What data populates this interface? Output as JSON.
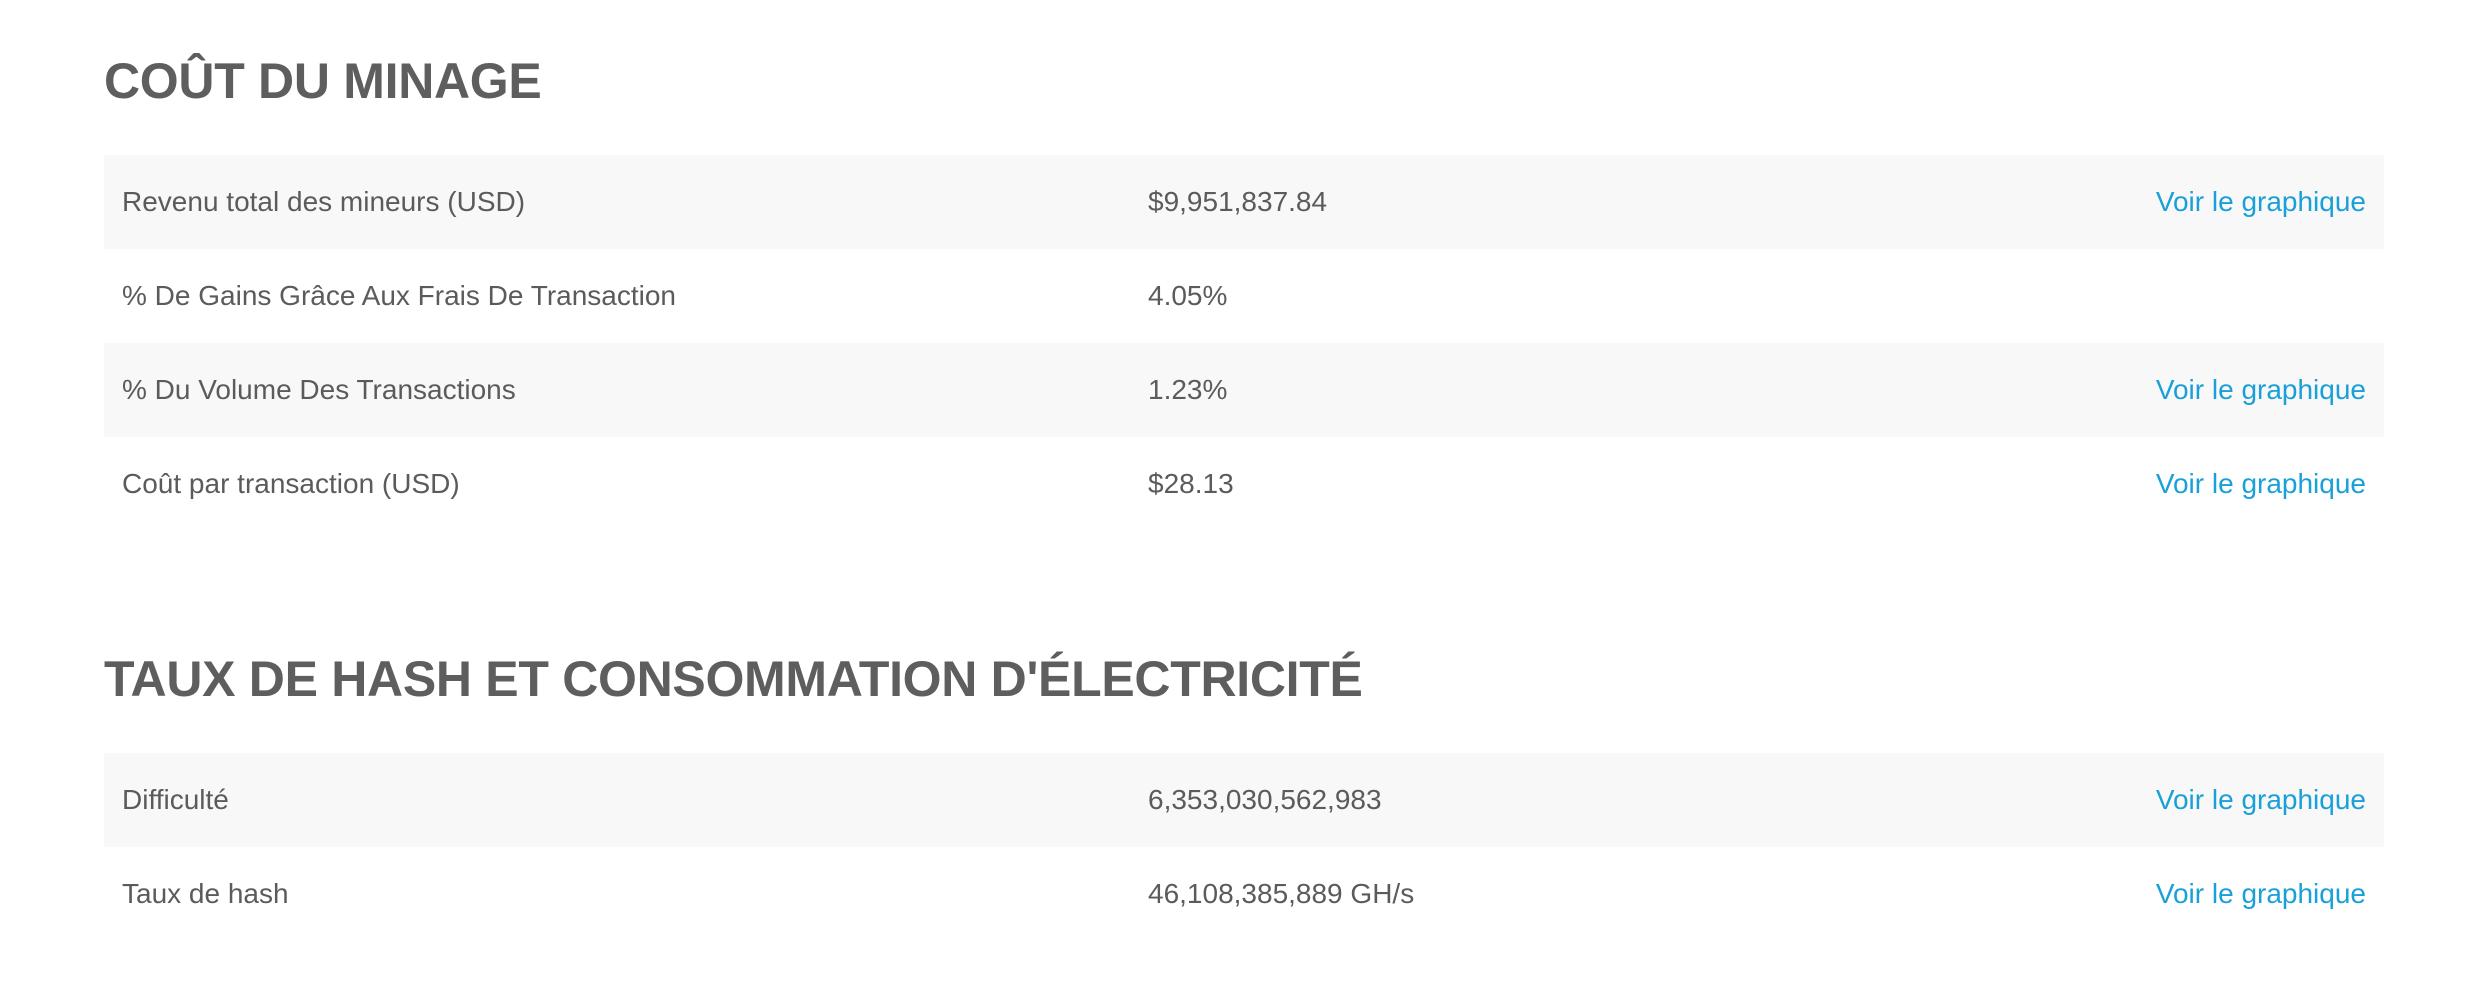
{
  "sections": [
    {
      "title": "COÛT DU MINAGE",
      "rows": [
        {
          "label": "Revenu total des mineurs (USD)",
          "value": "$9,951,837.84",
          "link": "Voir le graphique"
        },
        {
          "label": "% De Gains Grâce Aux Frais De Transaction",
          "value": "4.05%",
          "link": ""
        },
        {
          "label": "% Du Volume Des Transactions",
          "value": "1.23%",
          "link": "Voir le graphique"
        },
        {
          "label": "Coût par transaction (USD)",
          "value": "$28.13",
          "link": "Voir le graphique"
        }
      ]
    },
    {
      "title": "TAUX DE HASH ET CONSOMMATION D'ÉLECTRICITÉ",
      "rows": [
        {
          "label": "Difficulté",
          "value": "6,353,030,562,983",
          "link": "Voir le graphique"
        },
        {
          "label": "Taux de hash",
          "value": "46,108,385,889 GH/s",
          "link": "Voir le graphique"
        }
      ]
    }
  ],
  "colors": {
    "link": "#1aa0d8",
    "text": "#5b5b5b",
    "stripe": "#f8f8f8"
  }
}
